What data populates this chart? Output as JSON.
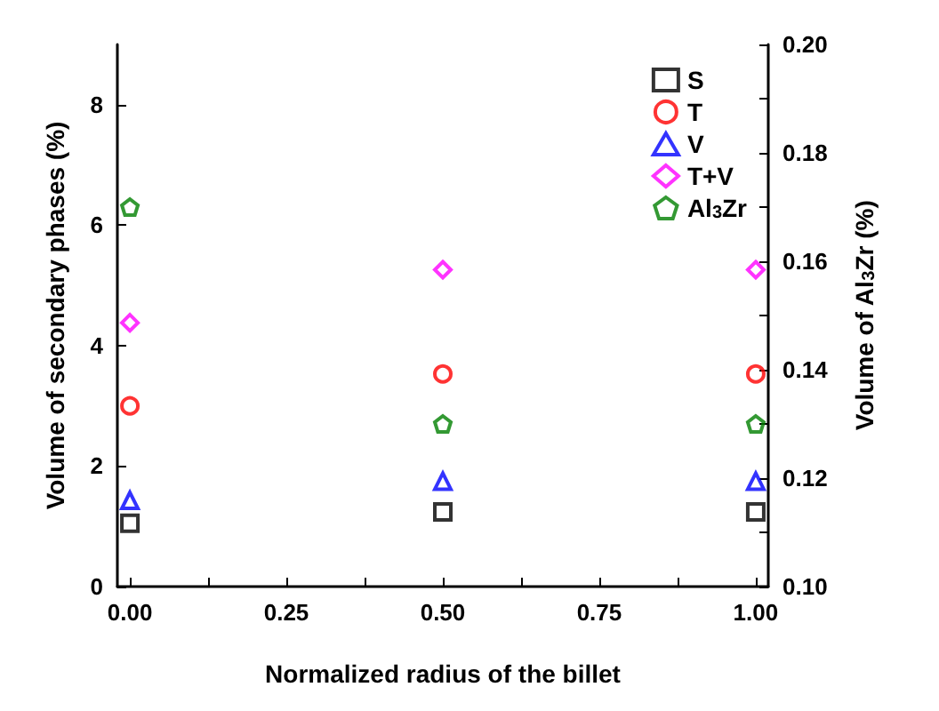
{
  "chart_data": {
    "type": "scatter",
    "xlabel": "Normalized radius of the billet",
    "ylabel": "Volume of secondary phases (%)",
    "y2label": "Volume of Al$_{3}$Zr (%)",
    "x": [
      0,
      0.5,
      1
    ],
    "xlim": [
      -0.02,
      1.02
    ],
    "xticks": [
      {
        "value": 0,
        "label": "0.00"
      },
      {
        "value": 0.125,
        "label": null
      },
      {
        "value": 0.25,
        "label": "0.25"
      },
      {
        "value": 0.375,
        "label": null
      },
      {
        "value": 0.5,
        "label": "0.50"
      },
      {
        "value": 0.625,
        "label": null
      },
      {
        "value": 0.75,
        "label": "0.75"
      },
      {
        "value": 0.875,
        "label": null
      },
      {
        "value": 1,
        "label": "1.00"
      }
    ],
    "ylim": [
      0,
      9
    ],
    "yticks": [
      0,
      2,
      4,
      6,
      8
    ],
    "y2lim": [
      0.1,
      0.2
    ],
    "y2ticks": [
      {
        "value": 0.1,
        "label": "0.10"
      },
      {
        "value": 0.11,
        "label": null
      },
      {
        "value": 0.12,
        "label": "0.12"
      },
      {
        "value": 0.13,
        "label": null
      },
      {
        "value": 0.14,
        "label": "0.14"
      },
      {
        "value": 0.15,
        "label": null
      },
      {
        "value": 0.16,
        "label": "0.16"
      },
      {
        "value": 0.17,
        "label": null
      },
      {
        "value": 0.18,
        "label": "0.18"
      },
      {
        "value": 0.19,
        "label": null
      },
      {
        "value": 0.2,
        "label": "0.20"
      }
    ],
    "legend": "top right",
    "grid": false,
    "series": [
      {
        "name": "S",
        "color": "#000000",
        "marker": "square",
        "values": [
          1.05,
          1.24,
          1.24
        ]
      },
      {
        "name": "T",
        "color": "#ff0000",
        "marker": "circle",
        "values": [
          3.0,
          3.53,
          3.53
        ]
      },
      {
        "name": "V",
        "color": "#0000ff",
        "marker": "triangle",
        "values": [
          1.43,
          1.75,
          1.75
        ]
      },
      {
        "name": "T+V",
        "color": "#ff00ff",
        "marker": "diamond",
        "values": [
          4.38,
          5.26,
          5.26
        ]
      },
      {
        "name": "Al$_{3}$Zr",
        "color": "#008000",
        "axis": "y2",
        "values": [
          0.17,
          0.13,
          0.13
        ]
      }
    ]
  }
}
